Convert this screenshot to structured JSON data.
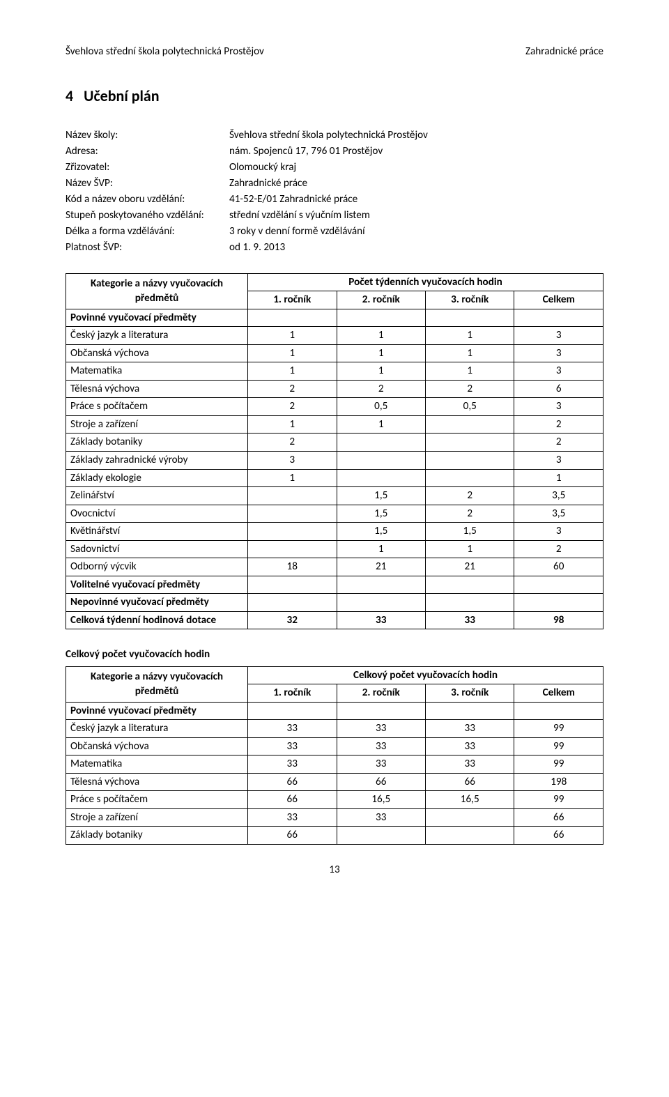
{
  "header": {
    "left": "Švehlova střední škola polytechnická Prostějov",
    "right": "Zahradnické práce"
  },
  "section": {
    "number": "4",
    "title": "Učební plán"
  },
  "meta": [
    {
      "label": "Název školy:",
      "value": "Švehlova střední škola polytechnická Prostějov"
    },
    {
      "label": "Adresa:",
      "value": "nám. Spojenců 17, 796 01 Prostějov"
    },
    {
      "label": "Zřizovatel:",
      "value": "Olomoucký kraj"
    },
    {
      "label": "Název ŠVP:",
      "value": "Zahradnické práce"
    },
    {
      "label": "Kód a název oboru vzdělání:",
      "value": "41-52-E/01 Zahradnické práce"
    },
    {
      "label": "Stupeň poskytovaného vzdělání:",
      "value": "střední vzdělání s výučním listem"
    },
    {
      "label": "Délka a forma vzdělávání:",
      "value": "3 roky v denní formě vzdělávání"
    },
    {
      "label": "Platnost ŠVP:",
      "value": "od 1. 9. 2013"
    }
  ],
  "table1": {
    "heading_left": "Kategorie a názvy vyučovacích předmětů",
    "heading_right": "Počet týdenních vyučovacích hodin",
    "cols": [
      "1. ročník",
      "2. ročník",
      "3. ročník",
      "Celkem"
    ],
    "rows": [
      {
        "label": "Povinné vyučovací předměty",
        "cells": [
          "",
          "",
          "",
          ""
        ],
        "bold": true
      },
      {
        "label": "Český jazyk a literatura",
        "cells": [
          "1",
          "1",
          "1",
          "3"
        ]
      },
      {
        "label": "Občanská výchova",
        "cells": [
          "1",
          "1",
          "1",
          "3"
        ]
      },
      {
        "label": "Matematika",
        "cells": [
          "1",
          "1",
          "1",
          "3"
        ]
      },
      {
        "label": "Tělesná výchova",
        "cells": [
          "2",
          "2",
          "2",
          "6"
        ]
      },
      {
        "label": "Práce s počítačem",
        "cells": [
          "2",
          "0,5",
          "0,5",
          "3"
        ]
      },
      {
        "label": "Stroje a zařízení",
        "cells": [
          "1",
          "1",
          "",
          "2"
        ]
      },
      {
        "label": "Základy botaniky",
        "cells": [
          "2",
          "",
          "",
          "2"
        ]
      },
      {
        "label": "Základy zahradnické výroby",
        "cells": [
          "3",
          "",
          "",
          "3"
        ]
      },
      {
        "label": "Základy ekologie",
        "cells": [
          "1",
          "",
          "",
          "1"
        ]
      },
      {
        "label": "Zelinářství",
        "cells": [
          "",
          "1,5",
          "2",
          "3,5"
        ]
      },
      {
        "label": "Ovocnictví",
        "cells": [
          "",
          "1,5",
          "2",
          "3,5"
        ]
      },
      {
        "label": "Květinářství",
        "cells": [
          "",
          "1,5",
          "1,5",
          "3"
        ]
      },
      {
        "label": "Sadovnictví",
        "cells": [
          "",
          "1",
          "1",
          "2"
        ]
      },
      {
        "label": "Odborný výcvik",
        "cells": [
          "18",
          "21",
          "21",
          "60"
        ]
      },
      {
        "label": "Volitelné vyučovací předměty",
        "cells": [
          "",
          "",
          "",
          ""
        ],
        "bold": true
      },
      {
        "label": "Nepovinné vyučovací předměty",
        "cells": [
          "",
          "",
          "",
          ""
        ],
        "bold": true
      },
      {
        "label": "Celková týdenní hodinová dotace",
        "cells": [
          "32",
          "33",
          "33",
          "98"
        ],
        "bold": true
      }
    ]
  },
  "middle_heading": "Celkový počet vyučovacích hodin",
  "table2": {
    "heading_left": "Kategorie a názvy vyučovacích předmětů",
    "heading_right": "Celkový počet vyučovacích hodin",
    "cols": [
      "1. ročník",
      "2. ročník",
      "3. ročník",
      "Celkem"
    ],
    "rows": [
      {
        "label": "Povinné vyučovací předměty",
        "cells": [
          "",
          "",
          "",
          ""
        ],
        "bold": true
      },
      {
        "label": "Český jazyk a literatura",
        "cells": [
          "33",
          "33",
          "33",
          "99"
        ]
      },
      {
        "label": "Občanská výchova",
        "cells": [
          "33",
          "33",
          "33",
          "99"
        ]
      },
      {
        "label": "Matematika",
        "cells": [
          "33",
          "33",
          "33",
          "99"
        ]
      },
      {
        "label": "Tělesná výchova",
        "cells": [
          "66",
          "66",
          "66",
          "198"
        ]
      },
      {
        "label": "Práce s počítačem",
        "cells": [
          "66",
          "16,5",
          "16,5",
          "99"
        ]
      },
      {
        "label": "Stroje a zařízení",
        "cells": [
          "33",
          "33",
          "",
          "66"
        ]
      },
      {
        "label": "Základy botaniky",
        "cells": [
          "66",
          "",
          "",
          "66"
        ]
      }
    ]
  },
  "page_number": "13"
}
